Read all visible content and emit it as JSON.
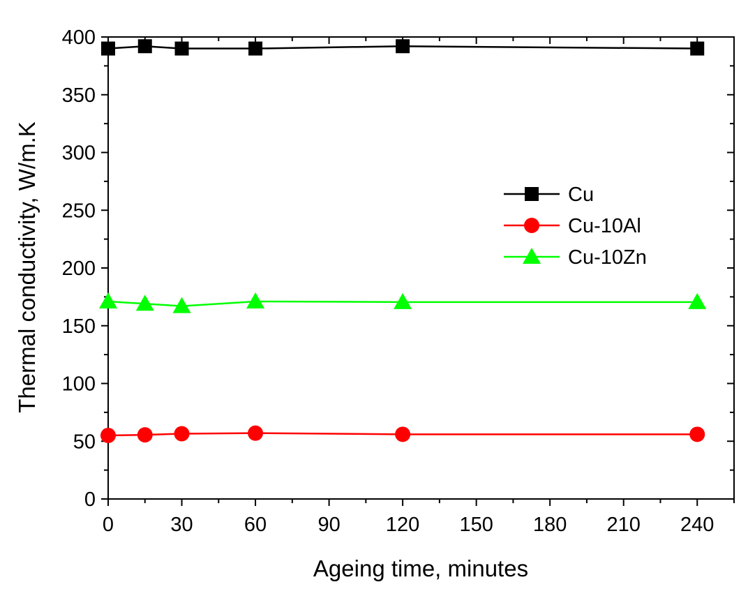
{
  "chart_data": {
    "type": "line",
    "title": "",
    "xlabel": "Ageing time, minutes",
    "ylabel": "Thermal conductivity, W/m.K",
    "xlim": [
      0,
      255
    ],
    "ylim": [
      0,
      400
    ],
    "xticks": [
      0,
      30,
      60,
      90,
      120,
      150,
      180,
      210,
      240
    ],
    "yticks": [
      0,
      50,
      100,
      150,
      200,
      250,
      300,
      350,
      400
    ],
    "grid": false,
    "legend_position": "center-right",
    "series": [
      {
        "name": "Cu",
        "color": "#000000",
        "marker": "square",
        "x": [
          0,
          15,
          30,
          60,
          120,
          240
        ],
        "y": [
          390,
          392,
          390,
          390,
          392,
          390
        ]
      },
      {
        "name": "Cu-10Al",
        "color": "#ff0000",
        "marker": "circle",
        "x": [
          0,
          15,
          30,
          60,
          120,
          240
        ],
        "y": [
          55,
          55.5,
          56.5,
          57,
          56,
          56
        ]
      },
      {
        "name": "Cu-10Zn",
        "color": "#00ff00",
        "marker": "triangle",
        "x": [
          0,
          15,
          30,
          60,
          120,
          240
        ],
        "y": [
          171,
          169,
          167,
          171,
          170.5,
          170.5
        ]
      }
    ]
  }
}
